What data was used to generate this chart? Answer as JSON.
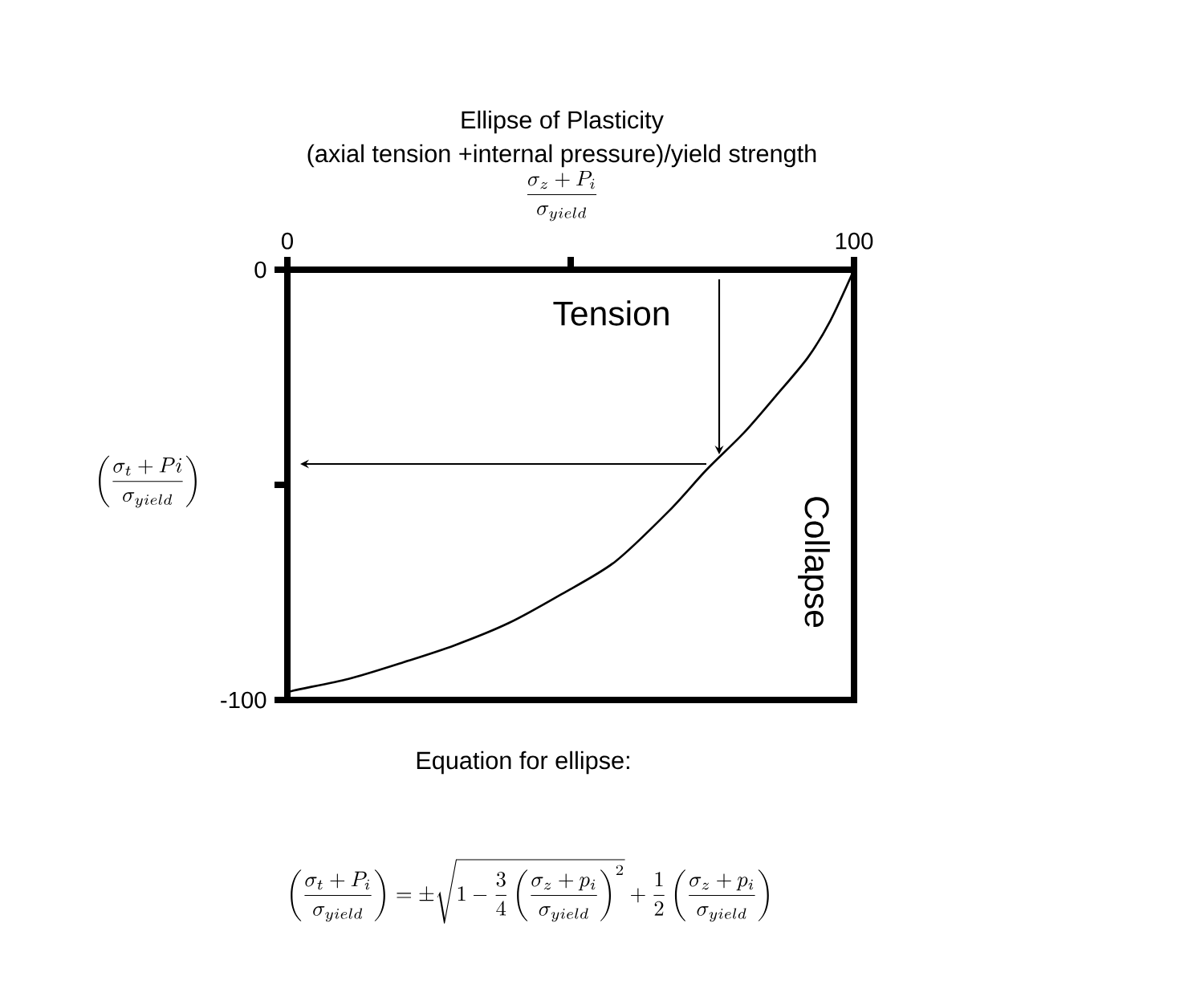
{
  "chart_data": {
    "type": "line",
    "title": "Ellipse of Plasticity",
    "subtitle": "(axial tension +internal pressure)/yield strength",
    "xlabel": "\\frac{\\sigma_z + P_i}{\\sigma_{yield}}",
    "ylabel": "\\left(\\frac{\\sigma_t + Pi}{\\sigma_{yield}}\\right)",
    "annotations": [
      "Tension",
      "Collapse",
      "Equation for ellipse:",
      "\\left(\\frac{\\sigma_t + P_i}{\\sigma_{yield}}\\right) = \\pm\\sqrt{1-\\frac{3}{4}\\left(\\frac{\\sigma_z + p_i}{\\sigma_{yield}}\\right)^2} + \\frac{1}{2}\\left(\\frac{\\sigma_z + p_i}{\\sigma_{yield}}\\right)"
    ],
    "x": [
      0,
      1.1,
      10.8,
      20.1,
      29.5,
      39.1,
      48.4,
      57.8,
      67.4,
      73.9,
      80.5,
      86.1,
      91.8,
      95.8,
      100
    ],
    "series": [
      {
        "color": "#000000",
        "values": [
          -98.5,
          -97.8,
          -95.1,
          -91.4,
          -87.3,
          -82.1,
          -75.4,
          -67.9,
          -56,
          -46.6,
          -38,
          -29.5,
          -20.5,
          -11.9,
          0
        ]
      }
    ],
    "xlim": [
      0,
      100
    ],
    "ylim": [
      -100,
      0
    ],
    "xticks": [
      0,
      {
        "value": 50,
        "label": null
      },
      100
    ],
    "yticks": [
      0,
      {
        "value": -50,
        "label": null
      },
      -100
    ]
  }
}
